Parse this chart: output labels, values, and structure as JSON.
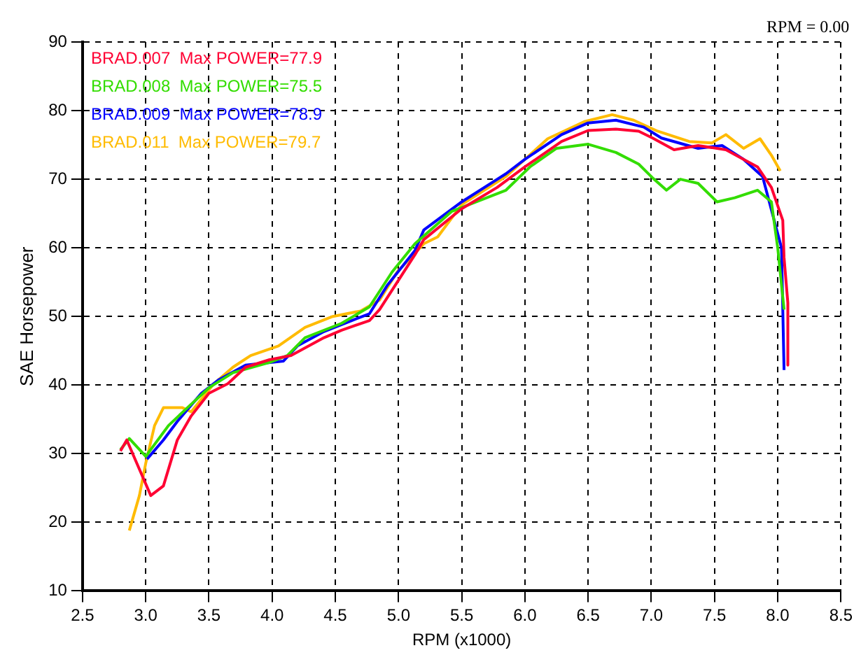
{
  "chart_data": {
    "type": "line",
    "xlabel": "RPM (x1000)",
    "ylabel": "SAE Horsepower",
    "annotations": [
      "RPM = 0.00"
    ],
    "legend": "top left",
    "grid": true,
    "xlim": [
      2.5,
      8.5
    ],
    "ylim": [
      10,
      90
    ],
    "xticks": [
      {
        "value": 2.5,
        "label": "2.5"
      },
      {
        "value": 3,
        "label": "3.0"
      },
      {
        "value": 3.5,
        "label": "3.5"
      },
      {
        "value": 4,
        "label": "4.0"
      },
      {
        "value": 4.5,
        "label": "4.5"
      },
      {
        "value": 5,
        "label": "5.0"
      },
      {
        "value": 5.5,
        "label": "5.5"
      },
      {
        "value": 6,
        "label": "6.0"
      },
      {
        "value": 6.5,
        "label": "6.5"
      },
      {
        "value": 7,
        "label": "7.0"
      },
      {
        "value": 7.5,
        "label": "7.5"
      },
      {
        "value": 8,
        "label": "8.0"
      },
      {
        "value": 8.5,
        "label": "8.5"
      }
    ],
    "yticks": [
      10,
      20,
      30,
      40,
      50,
      60,
      70,
      80,
      90
    ],
    "series": [
      {
        "name": "BRAD.007  Max POWER=77.9",
        "color": "#ff0033",
        "x": [
          2.8,
          2.85,
          2.96,
          3.04,
          3.14,
          3.25,
          3.36,
          3.5,
          3.65,
          3.79,
          3.98,
          4.15,
          4.41,
          4.55,
          4.77,
          4.85,
          4.99,
          5.13,
          5.2,
          5.5,
          5.78,
          6.0,
          6.29,
          6.5,
          6.72,
          6.9,
          7.01,
          7.18,
          7.37,
          7.59,
          7.73,
          7.84,
          7.95,
          8.04,
          8.05,
          8.08,
          8.08
        ],
        "values": [
          30.4,
          32,
          27.3,
          23.9,
          25.3,
          32,
          35.5,
          38.8,
          40.2,
          42.6,
          43.7,
          44.3,
          46.9,
          48,
          49.4,
          51,
          55,
          59,
          61.2,
          65.7,
          68.8,
          71.8,
          75.5,
          77.1,
          77.3,
          77,
          76,
          74.3,
          74.9,
          74.3,
          72.9,
          71.8,
          68.8,
          64,
          58.6,
          52,
          42.9
        ]
      },
      {
        "name": "BRAD.008  Max POWER=75.5",
        "color": "#33dd00",
        "x": [
          2.8,
          2.87,
          3.0,
          3.18,
          3.33,
          3.5,
          3.69,
          3.98,
          4.12,
          4.26,
          4.55,
          4.77,
          4.95,
          5.13,
          5.42,
          5.85,
          6.04,
          6.25,
          6.5,
          6.72,
          6.9,
          7.01,
          7.12,
          7.23,
          7.37,
          7.52,
          7.66,
          7.84,
          7.95,
          8.0,
          8.05
        ],
        "values": [
          30.6,
          32.2,
          29.6,
          34.1,
          36.7,
          39.6,
          41.8,
          43.3,
          44.3,
          46.9,
          49,
          51.4,
          56.5,
          60.6,
          65.3,
          68.4,
          71.8,
          74.5,
          75.1,
          73.9,
          72.2,
          70.2,
          68.4,
          70,
          69.4,
          66.7,
          67.3,
          68.4,
          66.7,
          60,
          51
        ]
      },
      {
        "name": "BRAD.009  Max POWER=78.9",
        "color": "#0000ff",
        "x": [
          3.01,
          3.14,
          3.25,
          3.44,
          3.58,
          3.79,
          4.09,
          4.2,
          4.41,
          4.63,
          4.77,
          4.91,
          5.13,
          5.2,
          5.5,
          5.85,
          6.0,
          6.29,
          6.5,
          6.72,
          6.94,
          7.08,
          7.37,
          7.56,
          7.73,
          7.88,
          8.03,
          8.05
        ],
        "values": [
          29.2,
          32,
          34.7,
          38.8,
          40.8,
          42.9,
          43.5,
          45.7,
          47.8,
          49.4,
          50.4,
          54.5,
          59.6,
          62.6,
          66.7,
          70.8,
          72.9,
          76.5,
          78.2,
          78.6,
          77.6,
          76,
          74.5,
          74.9,
          72.9,
          70.4,
          60,
          42.2
        ]
      },
      {
        "name": "BRAD.011  Max POWER=79.7",
        "color": "#ffbb00",
        "x": [
          2.87,
          2.95,
          3.0,
          3.07,
          3.14,
          3.29,
          3.36,
          3.54,
          3.69,
          3.83,
          4.05,
          4.26,
          4.48,
          4.7,
          4.85,
          4.99,
          5.2,
          5.31,
          5.5,
          5.85,
          6.18,
          6.47,
          6.69,
          6.86,
          7.05,
          7.3,
          7.48,
          7.59,
          7.73,
          7.86,
          7.95,
          8.02
        ],
        "values": [
          18.8,
          23.9,
          28.6,
          34.1,
          36.7,
          36.7,
          36.1,
          40.2,
          42.6,
          44.3,
          45.7,
          48.4,
          50,
          50.8,
          52.4,
          56.5,
          60.6,
          61.6,
          66.3,
          70.4,
          75.9,
          78.4,
          79.4,
          78.6,
          77,
          75.5,
          75.3,
          76.5,
          74.5,
          75.9,
          73.5,
          71.2
        ]
      }
    ]
  }
}
